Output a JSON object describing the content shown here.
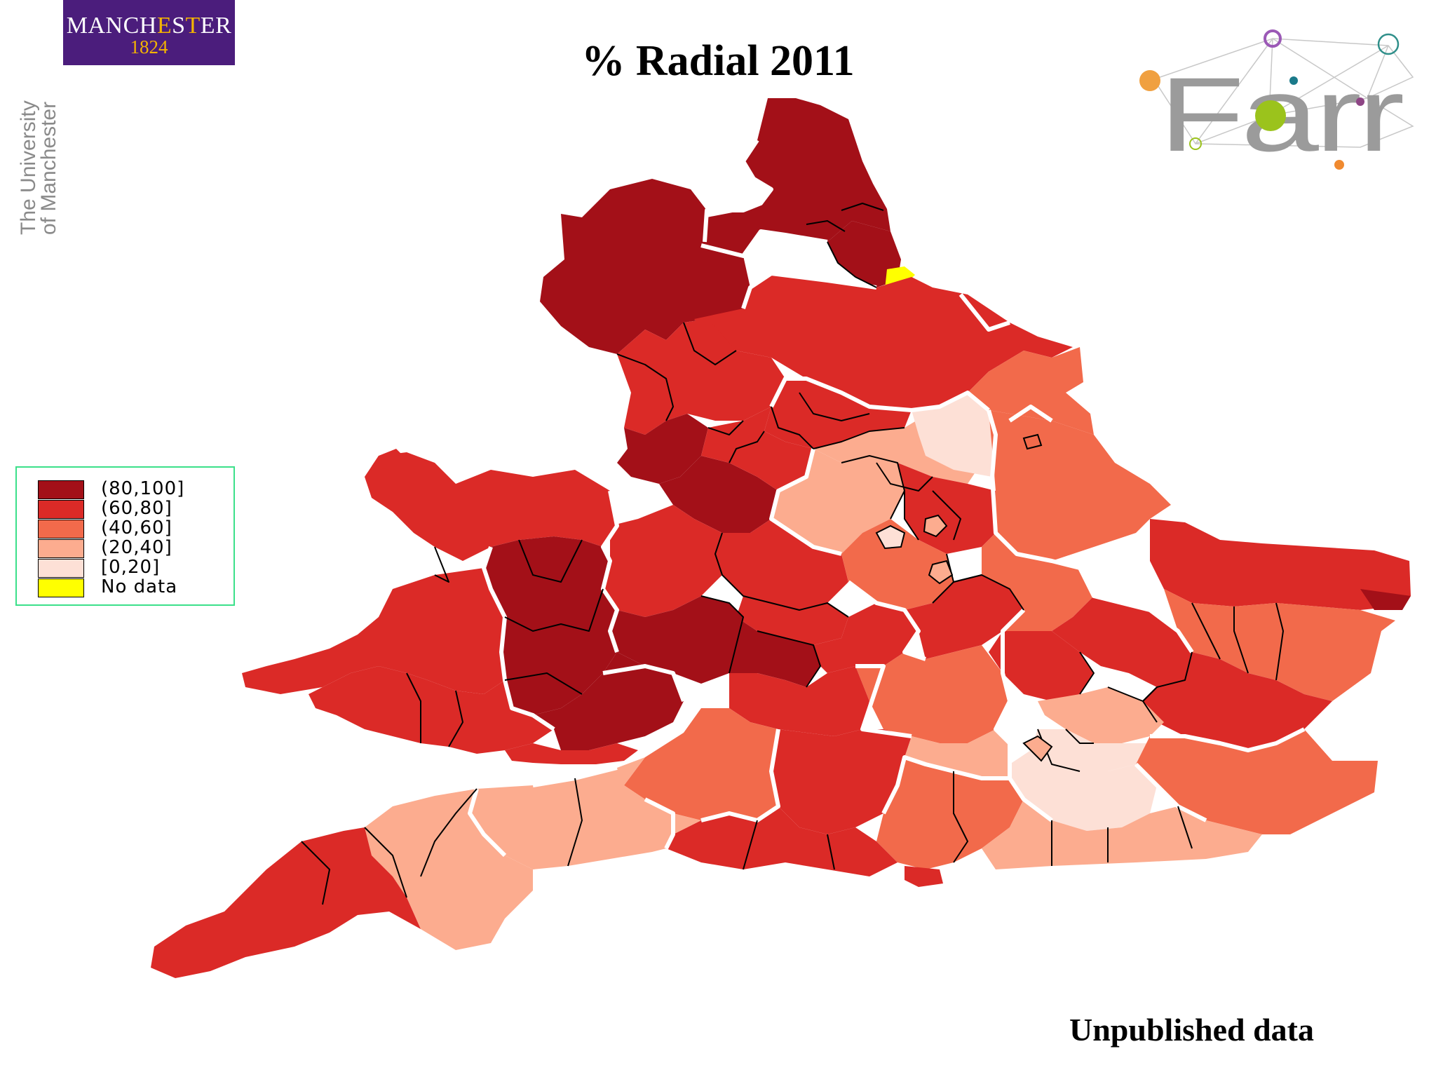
{
  "header": {
    "title": "% Radial 2011",
    "institution_logo": {
      "name_part1": "MANCH",
      "name_accent1": "E",
      "name_part2": "S",
      "name_accent2": "T",
      "name_part3": "ER",
      "year": "1824"
    },
    "institution_text": [
      "The University",
      "of Manchester"
    ],
    "partner_logo_text": "Farr"
  },
  "legend": {
    "items": [
      {
        "label": "(80,100]",
        "color": "#a31018"
      },
      {
        "label": "(60,80]",
        "color": "#db2a27"
      },
      {
        "label": "(40,60]",
        "color": "#f26a4b"
      },
      {
        "label": "(20,40]",
        "color": "#fcac8f"
      },
      {
        "label": "[0,20]",
        "color": "#fde0d6"
      },
      {
        "label": "No data",
        "color": "#ffff00"
      }
    ]
  },
  "footer_note": "Unpublished data"
}
